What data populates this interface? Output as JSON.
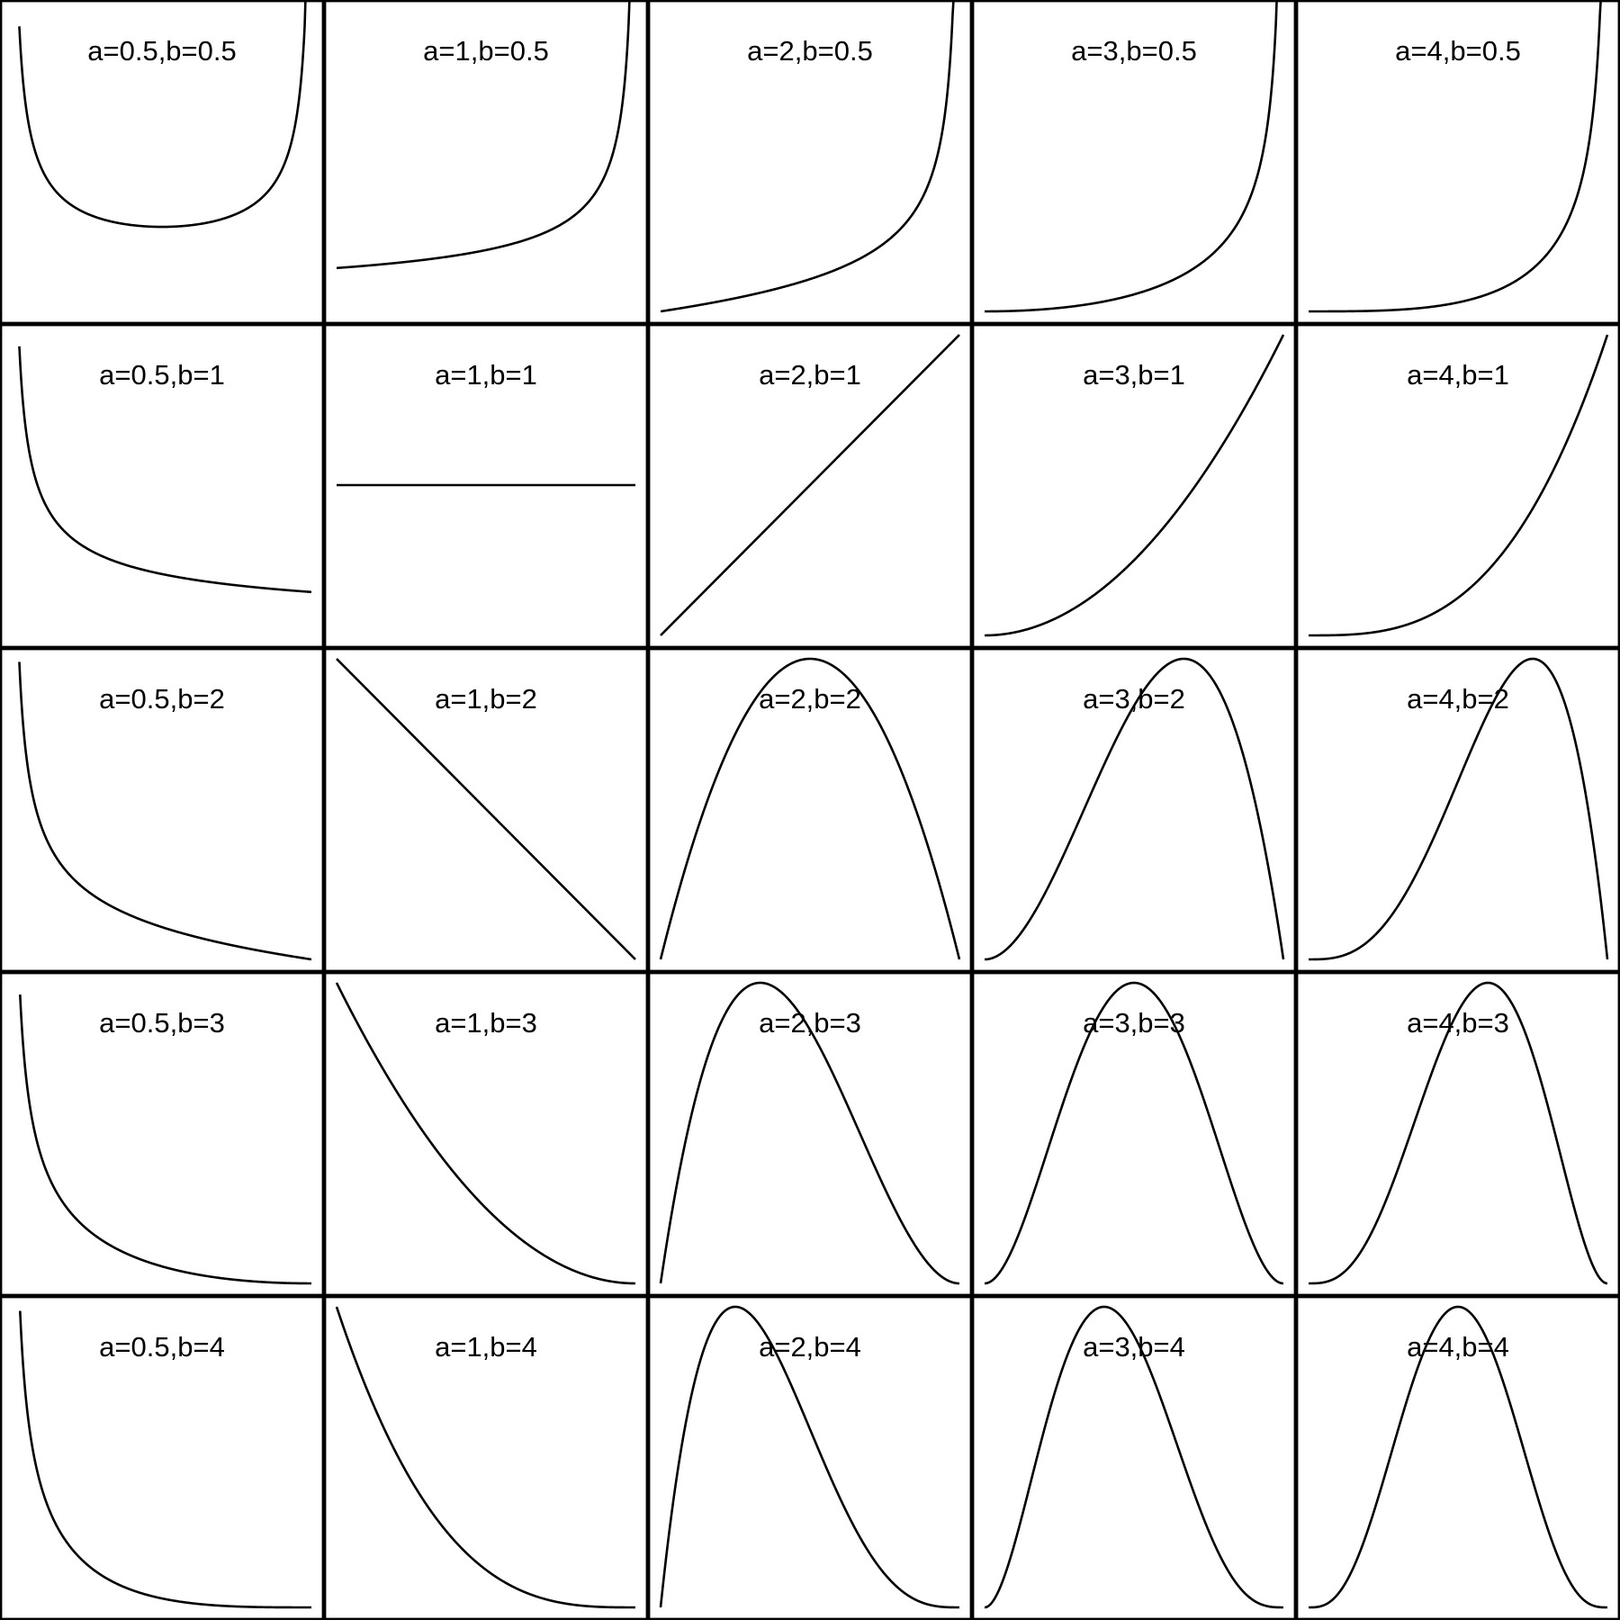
{
  "chart_data": {
    "type": "line",
    "description_rows": "b values by row",
    "description_cols": "a values by column",
    "a_values": [
      0.5,
      1,
      2,
      3,
      4
    ],
    "b_values": [
      0.5,
      1,
      2,
      3,
      4
    ],
    "x_range": [
      0,
      1
    ],
    "axes_visible": false,
    "grid": false,
    "panels": [
      {
        "title": "a=0.5,b=0.5",
        "a": 0.5,
        "b": 0.5
      },
      {
        "title": "a=1,b=0.5",
        "a": 1,
        "b": 0.5
      },
      {
        "title": "a=2,b=0.5",
        "a": 2,
        "b": 0.5
      },
      {
        "title": "a=3,b=0.5",
        "a": 3,
        "b": 0.5
      },
      {
        "title": "a=4,b=0.5",
        "a": 4,
        "b": 0.5
      },
      {
        "title": "a=0.5,b=1",
        "a": 0.5,
        "b": 1
      },
      {
        "title": "a=1,b=1",
        "a": 1,
        "b": 1
      },
      {
        "title": "a=2,b=1",
        "a": 2,
        "b": 1
      },
      {
        "title": "a=3,b=1",
        "a": 3,
        "b": 1
      },
      {
        "title": "a=4,b=1",
        "a": 4,
        "b": 1
      },
      {
        "title": "a=0.5,b=2",
        "a": 0.5,
        "b": 2
      },
      {
        "title": "a=1,b=2",
        "a": 1,
        "b": 2
      },
      {
        "title": "a=2,b=2",
        "a": 2,
        "b": 2
      },
      {
        "title": "a=3,b=2",
        "a": 3,
        "b": 2
      },
      {
        "title": "a=4,b=2",
        "a": 4,
        "b": 2
      },
      {
        "title": "a=0.5,b=3",
        "a": 0.5,
        "b": 3
      },
      {
        "title": "a=1,b=3",
        "a": 1,
        "b": 3
      },
      {
        "title": "a=2,b=3",
        "a": 2,
        "b": 3
      },
      {
        "title": "a=3,b=3",
        "a": 3,
        "b": 3
      },
      {
        "title": "a=4,b=3",
        "a": 4,
        "b": 3
      },
      {
        "title": "a=0.5,b=4",
        "a": 0.5,
        "b": 4
      },
      {
        "title": "a=1,b=4",
        "a": 1,
        "b": 4
      },
      {
        "title": "a=2,b=4",
        "a": 2,
        "b": 4
      },
      {
        "title": "a=3,b=4",
        "a": 3,
        "b": 4
      },
      {
        "title": "a=4,b=4",
        "a": 4,
        "b": 4
      }
    ]
  }
}
